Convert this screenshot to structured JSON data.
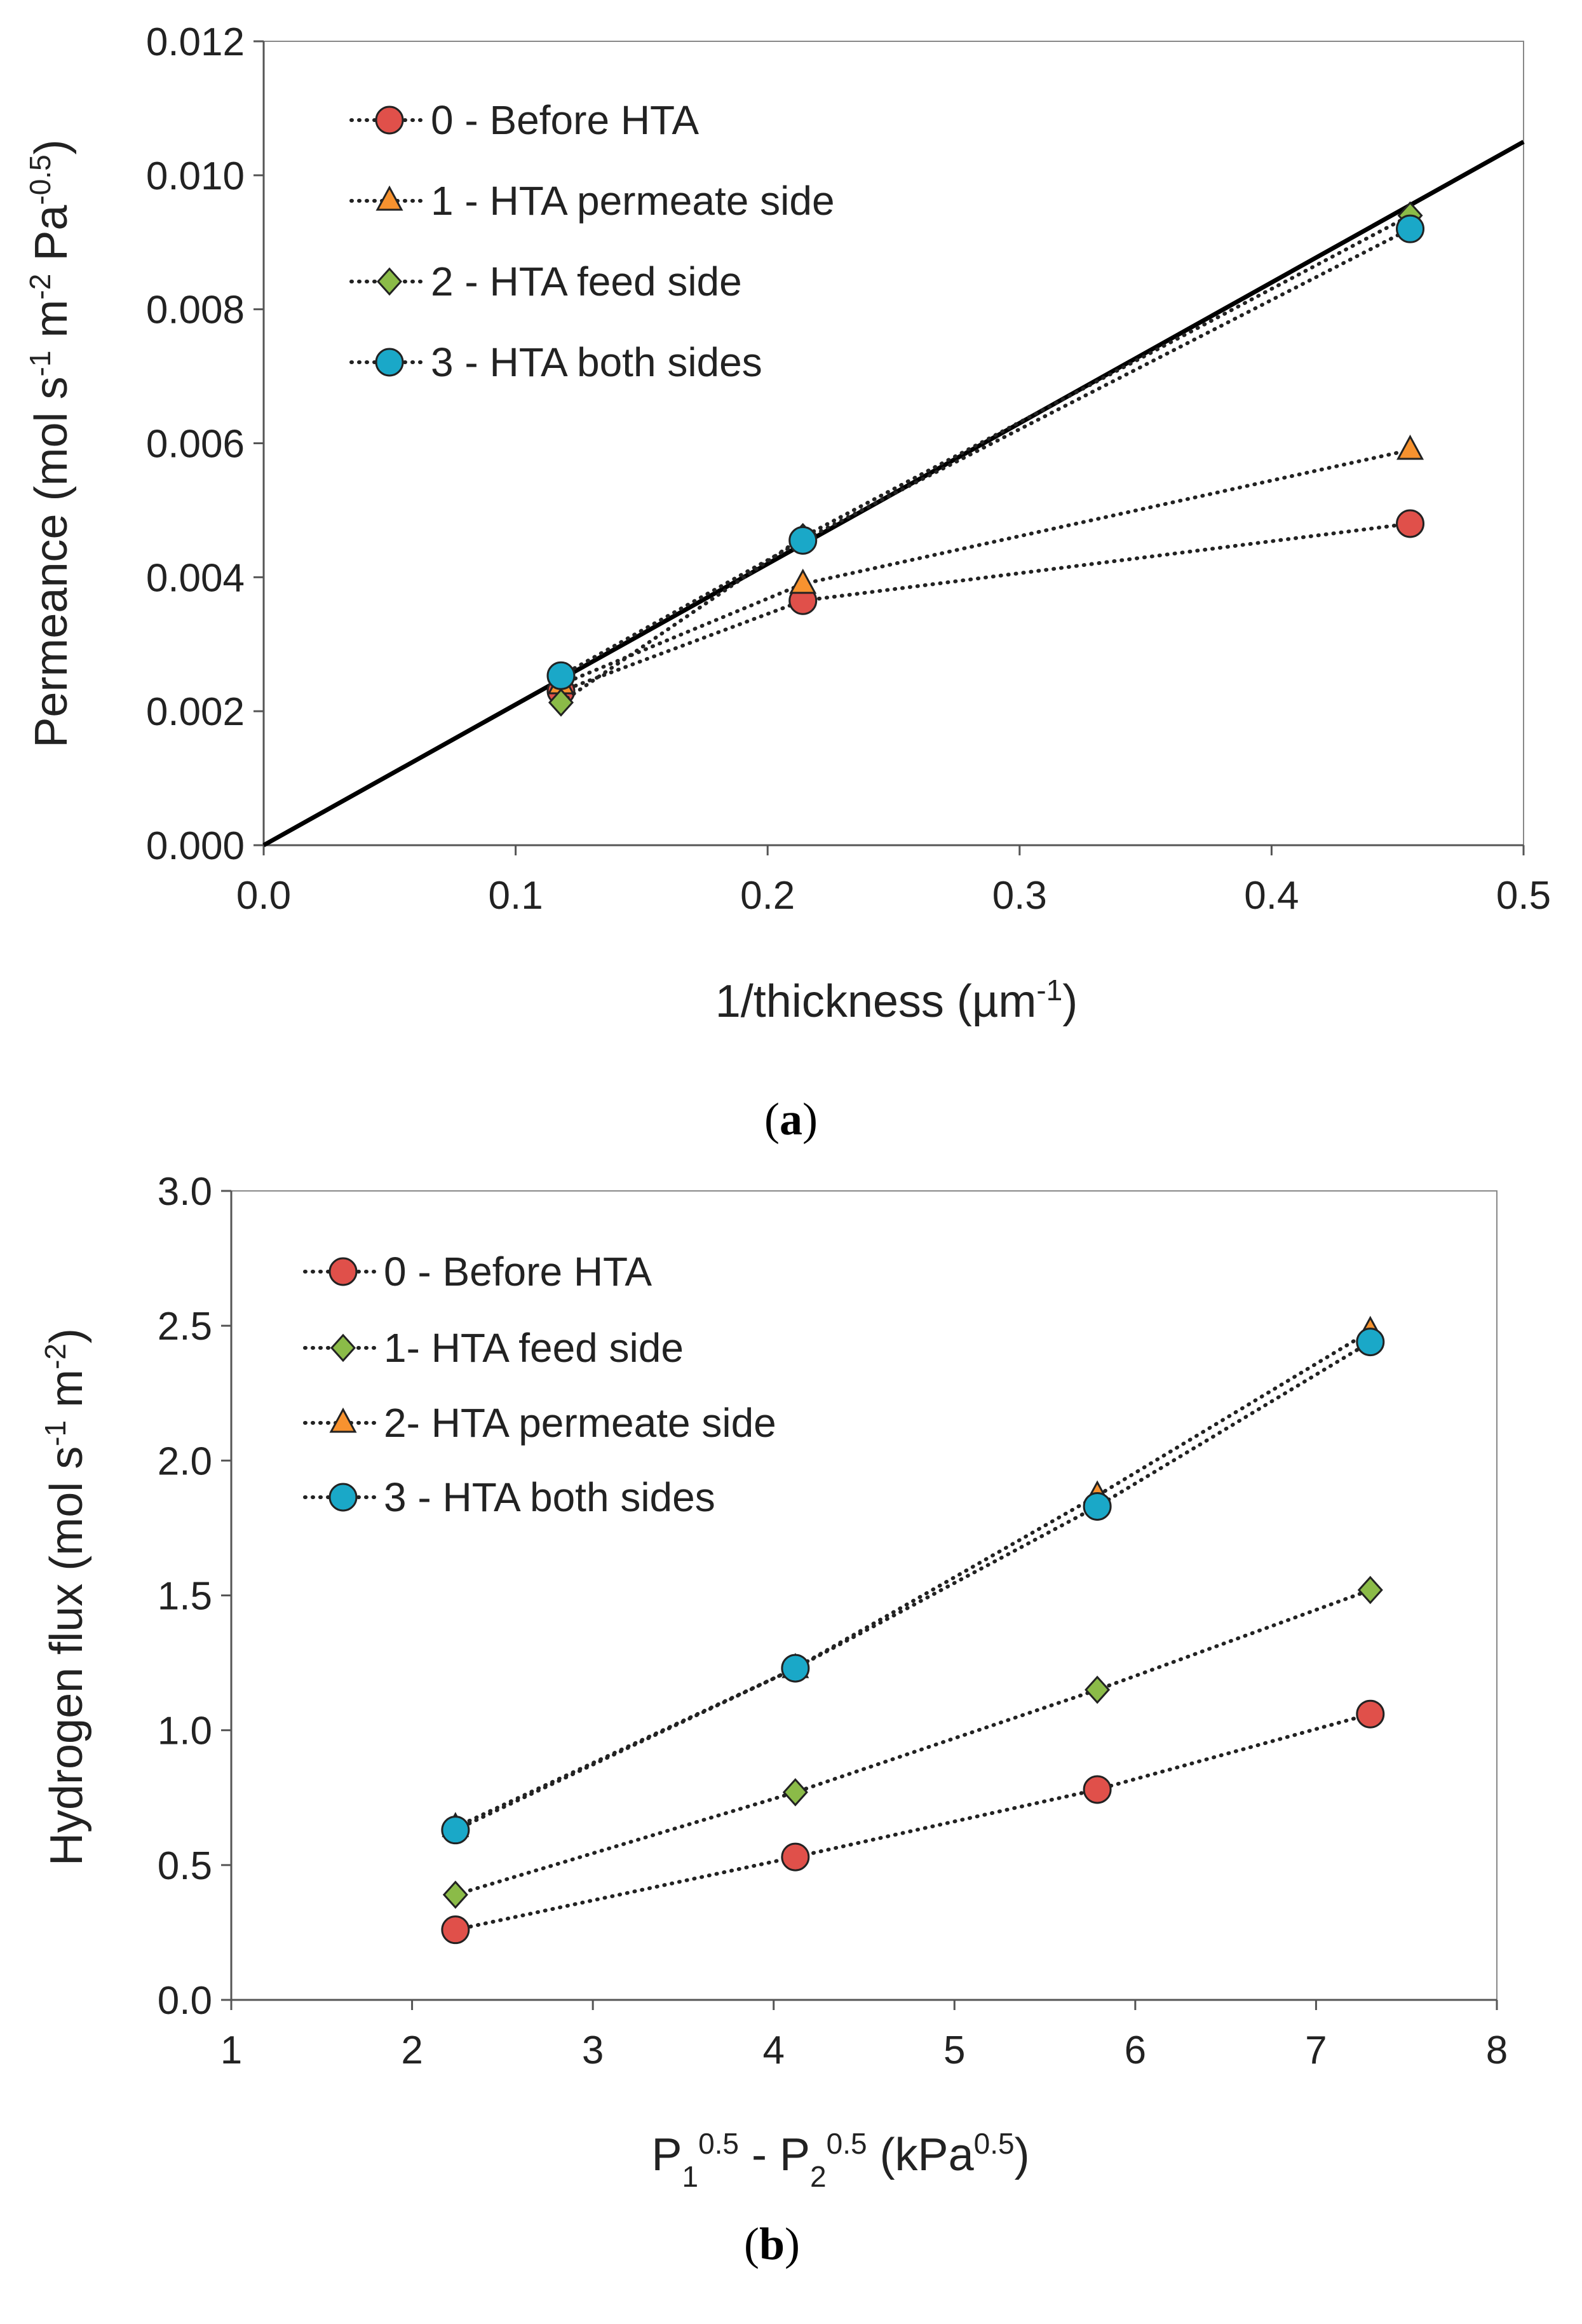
{
  "chart_data": [
    {
      "type": "scatter",
      "panel_label": "a",
      "caption": "(a)",
      "xlabel": [
        {
          "t": "1/thickness (µm"
        },
        {
          "t": "-1",
          "sup": true
        },
        {
          "t": ")"
        }
      ],
      "ylabel": [
        {
          "t": "Permeance (mol s"
        },
        {
          "t": "-1",
          "sup": true
        },
        {
          "t": " m"
        },
        {
          "t": "-2",
          "sup": true
        },
        {
          "t": " Pa"
        },
        {
          "t": "-0.5",
          "sup": true
        },
        {
          "t": ")"
        }
      ],
      "xlim": [
        0,
        0.5
      ],
      "ylim": [
        0,
        0.012
      ],
      "xticks": [
        "0.0",
        "0.1",
        "0.2",
        "0.3",
        "0.4",
        "0.5"
      ],
      "yticks": [
        "0.000",
        "0.002",
        "0.004",
        "0.006",
        "0.008",
        "0.010",
        "0.012"
      ],
      "grid": false,
      "legend_position": "top-left",
      "x": [
        0.118,
        0.214,
        0.455
      ],
      "series": [
        {
          "name": "0 - Before HTA",
          "marker": "circle",
          "color": "#e0504a",
          "values": [
            0.0023,
            0.00365,
            0.0048
          ]
        },
        {
          "name": "1 - HTA permeate side",
          "marker": "triangle",
          "color": "#f7922f",
          "values": [
            0.0024,
            0.0039,
            0.0059
          ]
        },
        {
          "name": "2 - HTA feed side",
          "marker": "diamond",
          "color": "#8bbb48",
          "values": [
            0.00213,
            0.0046,
            0.0094
          ]
        },
        {
          "name": "3 - HTA both sides",
          "marker": "circle",
          "color": "#1aa8c8",
          "values": [
            0.00253,
            0.00455,
            0.0092
          ]
        }
      ],
      "fit_line": {
        "x": [
          0,
          0.5
        ],
        "y": [
          0,
          0.0105
        ]
      }
    },
    {
      "type": "scatter",
      "panel_label": "b",
      "caption": "(b)",
      "xlabel": [
        {
          "t": "P"
        },
        {
          "t": "1",
          "sub": true
        },
        {
          "t": "0.5",
          "sup": true
        },
        {
          "t": " - P"
        },
        {
          "t": "2",
          "sub": true
        },
        {
          "t": "0.5",
          "sup": true
        },
        {
          "t": " (kPa"
        },
        {
          "t": "0.5",
          "sup": true
        },
        {
          "t": ")"
        }
      ],
      "ylabel": [
        {
          "t": "Hydrogen flux (mol s"
        },
        {
          "t": "-1",
          "sup": true
        },
        {
          "t": " m"
        },
        {
          "t": "-2",
          "sup": true
        },
        {
          "t": ")"
        }
      ],
      "xlim": [
        1,
        8
      ],
      "ylim": [
        0,
        3
      ],
      "xticks": [
        "1",
        "2",
        "3",
        "4",
        "5",
        "6",
        "7",
        "8"
      ],
      "yticks": [
        "0.0",
        "0.5",
        "1.0",
        "1.5",
        "2.0",
        "2.5",
        "3.0"
      ],
      "grid": false,
      "legend_position": "top-left",
      "x": [
        2.24,
        4.12,
        5.79,
        7.3
      ],
      "series": [
        {
          "name": "0 - Before HTA",
          "marker": "circle",
          "color": "#e0504a",
          "values": [
            0.26,
            0.53,
            0.78,
            1.06
          ]
        },
        {
          "name": "1- HTA feed side",
          "marker": "diamond",
          "color": "#8bbb48",
          "values": [
            0.39,
            0.77,
            1.15,
            1.52
          ]
        },
        {
          "name": "2- HTA permeate side",
          "marker": "triangle",
          "color": "#f7922f",
          "values": [
            0.64,
            1.23,
            1.87,
            2.48
          ]
        },
        {
          "name": "3 - HTA both sides",
          "marker": "circle",
          "color": "#1aa8c8",
          "values": [
            0.63,
            1.23,
            1.83,
            2.44
          ]
        }
      ]
    }
  ]
}
